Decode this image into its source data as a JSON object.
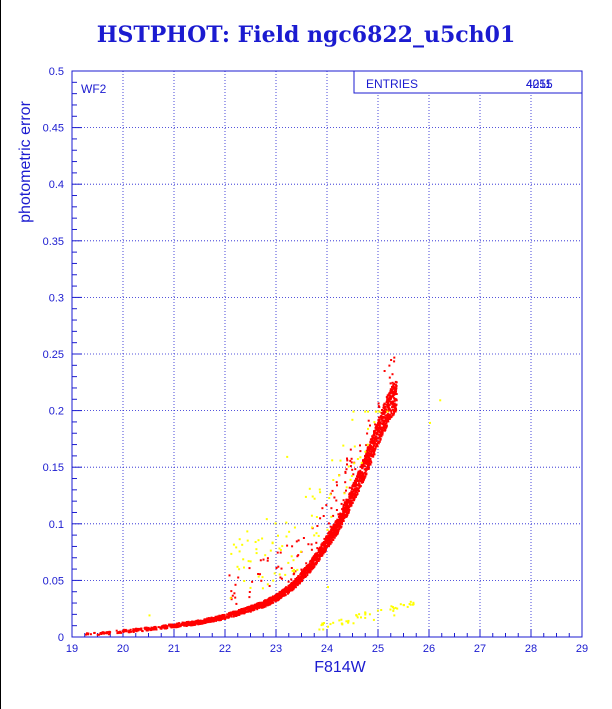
{
  "chart_data": {
    "type": "scatter",
    "title": "HSTPHOT: Field ngc6822_u5ch01",
    "xlabel": "F814W",
    "ylabel": "photometric error",
    "xlim": [
      19,
      29
    ],
    "ylim": [
      0,
      0.5
    ],
    "x_ticks": [
      "19",
      "20",
      "21",
      "22",
      "23",
      "24",
      "25",
      "26",
      "27",
      "28",
      "29"
    ],
    "y_ticks": [
      "0",
      "0.05",
      "0.1",
      "0.15",
      "0.2",
      "0.25",
      "0.3",
      "0.35",
      "0.4",
      "0.45",
      "0.5"
    ],
    "grid": true,
    "panel_label": "WF2",
    "stats_box": {
      "label": "ENTRIES",
      "value_a": "4055",
      "value_b": "4211"
    },
    "series": [
      {
        "color": "#ff0000",
        "sample_points": [
          [
            19.2,
            0.003
          ],
          [
            19.6,
            0.004
          ],
          [
            20.0,
            0.006
          ],
          [
            20.5,
            0.008
          ],
          [
            21.0,
            0.011
          ],
          [
            21.5,
            0.014
          ],
          [
            22.0,
            0.019
          ],
          [
            22.5,
            0.026
          ],
          [
            22.8,
            0.031
          ],
          [
            23.0,
            0.036
          ],
          [
            23.2,
            0.042
          ],
          [
            23.4,
            0.05
          ],
          [
            23.6,
            0.06
          ],
          [
            23.8,
            0.072
          ],
          [
            24.0,
            0.086
          ],
          [
            24.2,
            0.1
          ],
          [
            24.4,
            0.118
          ],
          [
            24.6,
            0.138
          ],
          [
            24.8,
            0.16
          ],
          [
            25.0,
            0.183
          ],
          [
            25.2,
            0.205
          ],
          [
            25.35,
            0.215
          ]
        ]
      },
      {
        "color": "#ffff00",
        "sample_points": [
          [
            20.5,
            0.02
          ],
          [
            22.2,
            0.08
          ],
          [
            22.6,
            0.075
          ],
          [
            22.8,
            0.105
          ],
          [
            23.2,
            0.16
          ],
          [
            23.7,
            0.125
          ],
          [
            24.0,
            0.045
          ],
          [
            24.3,
            0.17
          ],
          [
            24.5,
            0.2
          ],
          [
            24.0,
            0.01
          ],
          [
            24.5,
            0.013
          ],
          [
            24.9,
            0.016
          ],
          [
            25.3,
            0.02
          ],
          [
            25.6,
            0.03
          ],
          [
            26.2,
            0.21
          ],
          [
            26.0,
            0.19
          ]
        ]
      }
    ]
  }
}
